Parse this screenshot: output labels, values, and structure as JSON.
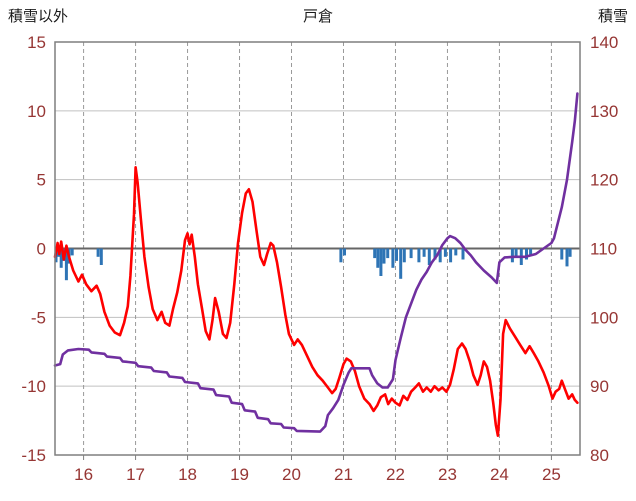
{
  "header": {
    "left_axis_label": "積雪以外",
    "title": "戸倉",
    "right_axis_label": "積雪"
  },
  "chart_data": {
    "type": "line",
    "title": "戸倉",
    "legend": "none",
    "grid": "horizontal-solid vertical-dashed",
    "colors": {
      "axis_text": "#963634",
      "grid": "#c0c0c0",
      "grid_dash": "#999999",
      "border": "#7f7f7f",
      "zero_line": "#666666",
      "red_line": "#ff0000",
      "purple_line": "#7030a0",
      "blue_bars": "#2e74b5"
    },
    "x_axis": {
      "min": 15.45,
      "max": 25.55,
      "ticks": [
        16,
        17,
        18,
        19,
        20,
        21,
        22,
        23,
        24,
        25
      ]
    },
    "left_axis": {
      "label": "積雪以外",
      "min": -15,
      "max": 15,
      "ticks": [
        15,
        10,
        5,
        0,
        -5,
        -10,
        -15
      ]
    },
    "right_axis": {
      "label": "積雪",
      "min": 80,
      "max": 140,
      "ticks": [
        140,
        130,
        120,
        110,
        100,
        90,
        80
      ]
    },
    "series": [
      {
        "name": "blue-precip-bars",
        "axis": "left",
        "type": "bar",
        "color": "#2e74b5",
        "points": [
          [
            15.47,
            -1.0
          ],
          [
            15.52,
            -0.6
          ],
          [
            15.57,
            -1.4
          ],
          [
            15.62,
            -0.9
          ],
          [
            15.67,
            -2.3
          ],
          [
            15.72,
            -1.1
          ],
          [
            15.78,
            -0.5
          ],
          [
            16.28,
            -0.6
          ],
          [
            16.34,
            -1.2
          ],
          [
            20.95,
            -1.0
          ],
          [
            21.02,
            -0.5
          ],
          [
            21.6,
            -0.7
          ],
          [
            21.66,
            -1.4
          ],
          [
            21.72,
            -2.0
          ],
          [
            21.78,
            -1.1
          ],
          [
            21.85,
            -0.7
          ],
          [
            21.95,
            -1.4
          ],
          [
            22.02,
            -0.9
          ],
          [
            22.1,
            -2.2
          ],
          [
            22.17,
            -1.0
          ],
          [
            22.3,
            -0.7
          ],
          [
            22.45,
            -1.0
          ],
          [
            22.55,
            -0.6
          ],
          [
            22.65,
            -1.2
          ],
          [
            22.76,
            -0.8
          ],
          [
            22.86,
            -1.0
          ],
          [
            22.96,
            -0.6
          ],
          [
            23.06,
            -1.0
          ],
          [
            23.16,
            -0.5
          ],
          [
            23.3,
            -0.8
          ],
          [
            24.25,
            -1.0
          ],
          [
            24.32,
            -0.6
          ],
          [
            24.42,
            -1.2
          ],
          [
            24.52,
            -0.8
          ],
          [
            24.6,
            -0.5
          ],
          [
            25.2,
            -0.8
          ],
          [
            25.3,
            -1.3
          ],
          [
            25.36,
            -0.6
          ]
        ]
      },
      {
        "name": "red-temperature-line",
        "axis": "left",
        "type": "line",
        "color": "#ff0000",
        "points": [
          [
            15.45,
            -0.6
          ],
          [
            15.5,
            0.4
          ],
          [
            15.53,
            -0.4
          ],
          [
            15.57,
            0.5
          ],
          [
            15.62,
            -0.8
          ],
          [
            15.67,
            0.2
          ],
          [
            15.72,
            -0.6
          ],
          [
            15.8,
            -1.6
          ],
          [
            15.9,
            -2.4
          ],
          [
            15.97,
            -1.9
          ],
          [
            16.05,
            -2.6
          ],
          [
            16.15,
            -3.1
          ],
          [
            16.25,
            -2.7
          ],
          [
            16.32,
            -3.3
          ],
          [
            16.4,
            -4.6
          ],
          [
            16.5,
            -5.6
          ],
          [
            16.6,
            -6.1
          ],
          [
            16.7,
            -6.3
          ],
          [
            16.78,
            -5.4
          ],
          [
            16.85,
            -4.2
          ],
          [
            16.9,
            -2.0
          ],
          [
            16.97,
            2.5
          ],
          [
            17.0,
            5.9
          ],
          [
            17.04,
            4.8
          ],
          [
            17.1,
            2.2
          ],
          [
            17.17,
            -0.6
          ],
          [
            17.25,
            -2.8
          ],
          [
            17.33,
            -4.4
          ],
          [
            17.42,
            -5.2
          ],
          [
            17.5,
            -4.6
          ],
          [
            17.57,
            -5.4
          ],
          [
            17.65,
            -5.6
          ],
          [
            17.72,
            -4.4
          ],
          [
            17.8,
            -3.2
          ],
          [
            17.88,
            -1.6
          ],
          [
            17.95,
            0.6
          ],
          [
            18.0,
            1.1
          ],
          [
            18.04,
            0.3
          ],
          [
            18.08,
            1.0
          ],
          [
            18.14,
            -0.6
          ],
          [
            18.2,
            -2.6
          ],
          [
            18.28,
            -4.4
          ],
          [
            18.35,
            -6.0
          ],
          [
            18.42,
            -6.6
          ],
          [
            18.48,
            -5.2
          ],
          [
            18.53,
            -3.6
          ],
          [
            18.6,
            -4.6
          ],
          [
            18.68,
            -6.2
          ],
          [
            18.75,
            -6.5
          ],
          [
            18.82,
            -5.4
          ],
          [
            18.9,
            -2.6
          ],
          [
            18.97,
            0.4
          ],
          [
            19.05,
            2.6
          ],
          [
            19.12,
            4.0
          ],
          [
            19.18,
            4.3
          ],
          [
            19.25,
            3.4
          ],
          [
            19.33,
            1.2
          ],
          [
            19.4,
            -0.6
          ],
          [
            19.47,
            -1.2
          ],
          [
            19.53,
            -0.4
          ],
          [
            19.6,
            0.4
          ],
          [
            19.65,
            0.2
          ],
          [
            19.72,
            -1.0
          ],
          [
            19.8,
            -2.8
          ],
          [
            19.88,
            -4.8
          ],
          [
            19.95,
            -6.2
          ],
          [
            20.05,
            -7.0
          ],
          [
            20.12,
            -6.6
          ],
          [
            20.2,
            -7.0
          ],
          [
            20.3,
            -7.8
          ],
          [
            20.4,
            -8.6
          ],
          [
            20.5,
            -9.2
          ],
          [
            20.6,
            -9.6
          ],
          [
            20.7,
            -10.1
          ],
          [
            20.78,
            -10.5
          ],
          [
            20.85,
            -10.2
          ],
          [
            20.92,
            -9.4
          ],
          [
            21.0,
            -8.4
          ],
          [
            21.06,
            -8.0
          ],
          [
            21.14,
            -8.2
          ],
          [
            21.22,
            -8.9
          ],
          [
            21.3,
            -10.0
          ],
          [
            21.4,
            -10.9
          ],
          [
            21.5,
            -11.3
          ],
          [
            21.58,
            -11.8
          ],
          [
            21.65,
            -11.4
          ],
          [
            21.72,
            -10.8
          ],
          [
            21.8,
            -10.6
          ],
          [
            21.86,
            -11.3
          ],
          [
            21.93,
            -10.9
          ],
          [
            22.0,
            -11.2
          ],
          [
            22.08,
            -11.4
          ],
          [
            22.15,
            -10.7
          ],
          [
            22.23,
            -11.0
          ],
          [
            22.3,
            -10.4
          ],
          [
            22.38,
            -10.1
          ],
          [
            22.45,
            -9.8
          ],
          [
            22.53,
            -10.4
          ],
          [
            22.6,
            -10.1
          ],
          [
            22.68,
            -10.4
          ],
          [
            22.75,
            -10.0
          ],
          [
            22.83,
            -10.3
          ],
          [
            22.9,
            -10.1
          ],
          [
            22.98,
            -10.4
          ],
          [
            23.05,
            -9.9
          ],
          [
            23.12,
            -8.8
          ],
          [
            23.2,
            -7.3
          ],
          [
            23.28,
            -6.9
          ],
          [
            23.35,
            -7.3
          ],
          [
            23.43,
            -8.2
          ],
          [
            23.5,
            -9.2
          ],
          [
            23.58,
            -9.9
          ],
          [
            23.64,
            -9.2
          ],
          [
            23.7,
            -8.2
          ],
          [
            23.76,
            -8.6
          ],
          [
            23.82,
            -9.6
          ],
          [
            23.88,
            -11.2
          ],
          [
            23.93,
            -12.8
          ],
          [
            23.97,
            -13.6
          ],
          [
            24.02,
            -11.0
          ],
          [
            24.07,
            -6.2
          ],
          [
            24.12,
            -5.2
          ],
          [
            24.2,
            -5.8
          ],
          [
            24.3,
            -6.4
          ],
          [
            24.4,
            -7.0
          ],
          [
            24.5,
            -7.6
          ],
          [
            24.58,
            -7.1
          ],
          [
            24.66,
            -7.6
          ],
          [
            24.75,
            -8.2
          ],
          [
            24.85,
            -9.0
          ],
          [
            24.95,
            -10.0
          ],
          [
            25.02,
            -10.9
          ],
          [
            25.08,
            -10.4
          ],
          [
            25.15,
            -10.2
          ],
          [
            25.2,
            -9.6
          ],
          [
            25.27,
            -10.3
          ],
          [
            25.33,
            -10.9
          ],
          [
            25.4,
            -10.6
          ],
          [
            25.45,
            -11.0
          ],
          [
            25.5,
            -11.2
          ]
        ]
      },
      {
        "name": "purple-snowdepth-line",
        "axis": "right",
        "type": "line",
        "color": "#7030a0",
        "points": [
          [
            15.45,
            93.0
          ],
          [
            15.55,
            93.2
          ],
          [
            15.6,
            94.6
          ],
          [
            15.7,
            95.2
          ],
          [
            15.9,
            95.4
          ],
          [
            16.1,
            95.3
          ],
          [
            16.15,
            94.9
          ],
          [
            16.4,
            94.7
          ],
          [
            16.45,
            94.3
          ],
          [
            16.7,
            94.1
          ],
          [
            16.75,
            93.6
          ],
          [
            17.0,
            93.4
          ],
          [
            17.05,
            92.9
          ],
          [
            17.3,
            92.7
          ],
          [
            17.35,
            92.2
          ],
          [
            17.6,
            92.0
          ],
          [
            17.65,
            91.4
          ],
          [
            17.9,
            91.2
          ],
          [
            17.95,
            90.6
          ],
          [
            18.2,
            90.4
          ],
          [
            18.25,
            89.7
          ],
          [
            18.5,
            89.5
          ],
          [
            18.55,
            88.7
          ],
          [
            18.8,
            88.5
          ],
          [
            18.85,
            87.6
          ],
          [
            19.05,
            87.4
          ],
          [
            19.1,
            86.5
          ],
          [
            19.3,
            86.3
          ],
          [
            19.35,
            85.4
          ],
          [
            19.55,
            85.2
          ],
          [
            19.6,
            84.6
          ],
          [
            19.8,
            84.5
          ],
          [
            19.85,
            84.0
          ],
          [
            20.05,
            83.9
          ],
          [
            20.1,
            83.5
          ],
          [
            20.55,
            83.4
          ],
          [
            20.65,
            84.2
          ],
          [
            20.7,
            85.8
          ],
          [
            20.8,
            86.8
          ],
          [
            20.9,
            88.0
          ],
          [
            21.0,
            90.2
          ],
          [
            21.1,
            92.0
          ],
          [
            21.15,
            92.6
          ],
          [
            21.5,
            92.6
          ],
          [
            21.55,
            91.6
          ],
          [
            21.65,
            90.4
          ],
          [
            21.75,
            89.8
          ],
          [
            21.85,
            89.8
          ],
          [
            21.95,
            91.0
          ],
          [
            22.0,
            93.8
          ],
          [
            22.1,
            97.0
          ],
          [
            22.2,
            100.0
          ],
          [
            22.3,
            102.0
          ],
          [
            22.4,
            104.0
          ],
          [
            22.5,
            105.5
          ],
          [
            22.6,
            106.6
          ],
          [
            22.7,
            108.0
          ],
          [
            22.8,
            109.0
          ],
          [
            22.9,
            110.5
          ],
          [
            23.0,
            111.5
          ],
          [
            23.05,
            111.8
          ],
          [
            23.15,
            111.5
          ],
          [
            23.25,
            110.8
          ],
          [
            23.35,
            109.8
          ],
          [
            23.45,
            109.0
          ],
          [
            23.55,
            108.0
          ],
          [
            23.7,
            106.8
          ],
          [
            23.85,
            105.8
          ],
          [
            23.95,
            105.0
          ],
          [
            24.0,
            108.0
          ],
          [
            24.1,
            108.7
          ],
          [
            24.3,
            108.8
          ],
          [
            24.5,
            108.8
          ],
          [
            24.7,
            109.2
          ],
          [
            24.85,
            110.0
          ],
          [
            25.0,
            110.8
          ],
          [
            25.05,
            111.5
          ],
          [
            25.1,
            113.0
          ],
          [
            25.2,
            116.0
          ],
          [
            25.3,
            120.0
          ],
          [
            25.4,
            125.5
          ],
          [
            25.45,
            128.5
          ],
          [
            25.5,
            132.5
          ]
        ]
      }
    ]
  }
}
